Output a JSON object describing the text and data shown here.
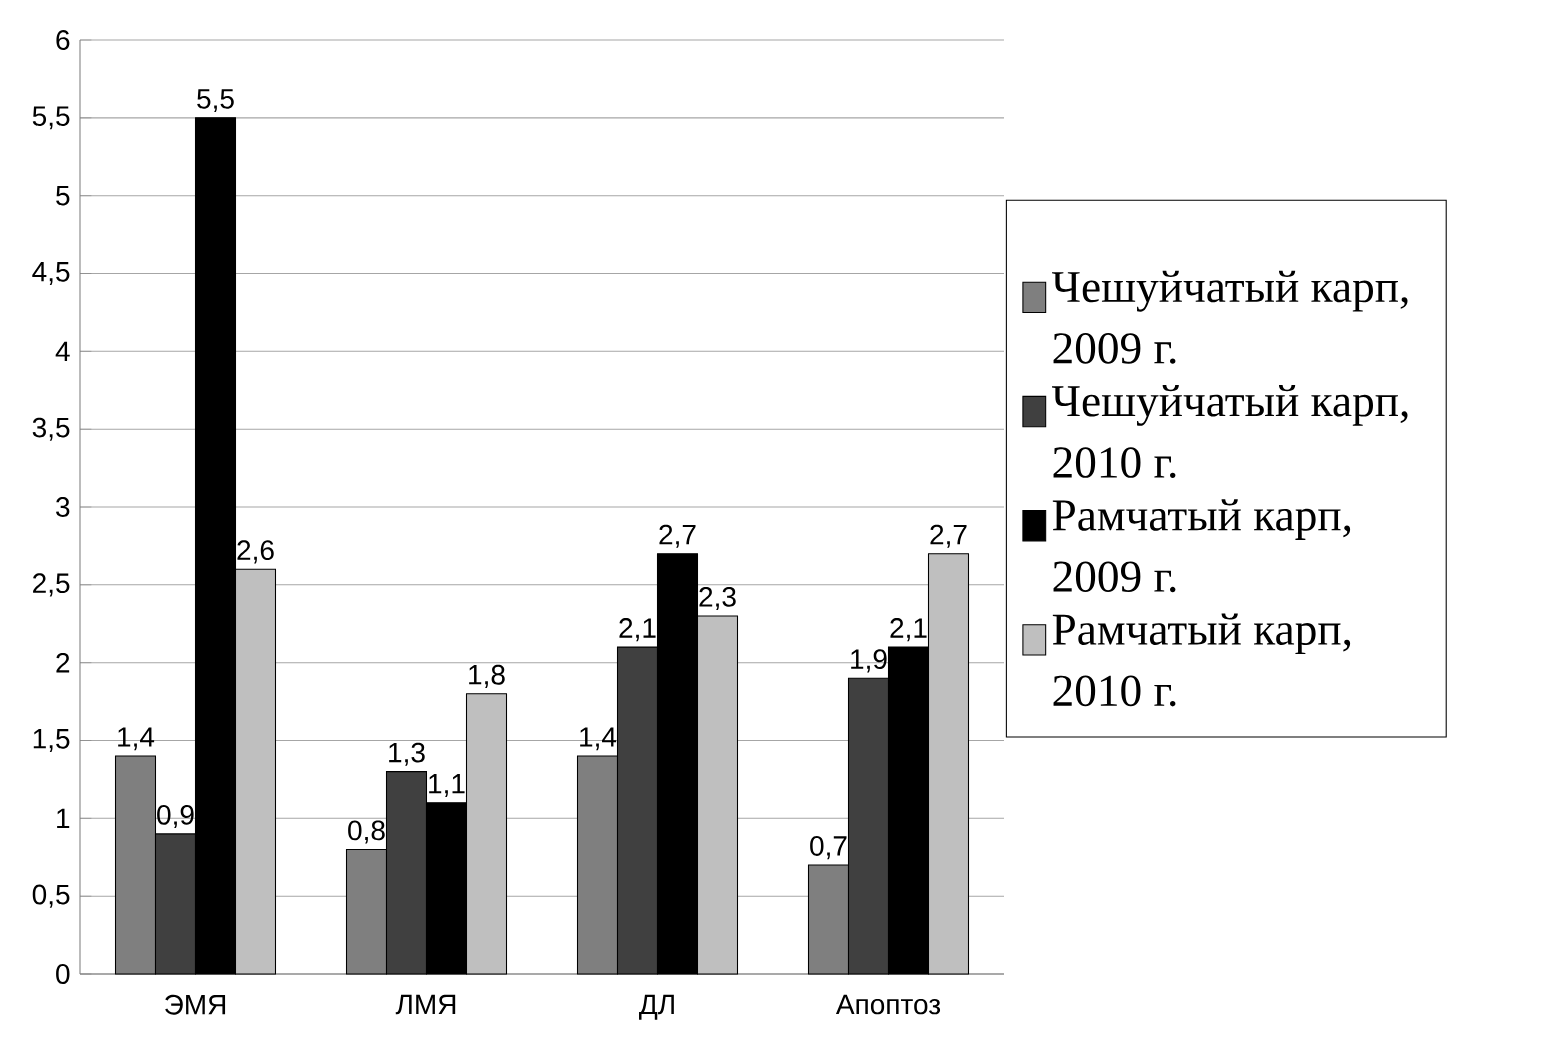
{
  "chart_data": {
    "type": "bar",
    "categories": [
      "ЭМЯ",
      "ЛМЯ",
      "ДЛ",
      "Апоптоз"
    ],
    "series": [
      {
        "name": "Чешуйчатый карп, 2009 г.",
        "color": "#7f7f7f",
        "values": [
          1.4,
          0.8,
          1.4,
          0.7
        ],
        "value_labels": [
          "1,4",
          "0,8",
          "1,4",
          "0,7"
        ]
      },
      {
        "name": "Чешуйчатый карп, 2010 г.",
        "color": "#404040",
        "values": [
          0.9,
          1.3,
          2.1,
          1.9
        ],
        "value_labels": [
          "0,9",
          "1,3",
          "2,1",
          "1,9"
        ]
      },
      {
        "name": "Рамчатый карп, 2009 г.",
        "color": "#000000",
        "values": [
          5.5,
          1.1,
          2.7,
          2.1
        ],
        "value_labels": [
          "5,5",
          "1,1",
          "2,7",
          "2,1"
        ]
      },
      {
        "name": "Рамчатый карп, 2010 г.",
        "color": "#bfbfbf",
        "values": [
          2.6,
          1.8,
          2.3,
          2.7
        ],
        "value_labels": [
          "2,6",
          "1,8",
          "2,3",
          "2,7"
        ]
      }
    ],
    "ylim": [
      0,
      6
    ],
    "yticks": [
      0,
      {
        "value": 0.5,
        "label": "0,5"
      },
      1,
      {
        "value": 1.5,
        "label": "1,5"
      },
      2,
      {
        "value": 2.5,
        "label": "2,5"
      },
      3,
      {
        "value": 3.5,
        "label": "3,5"
      },
      4,
      {
        "value": 4.5,
        "label": "4,5"
      },
      5,
      {
        "value": 5.5,
        "label": "5,5"
      },
      6
    ],
    "grid": "y",
    "legend": "right"
  }
}
